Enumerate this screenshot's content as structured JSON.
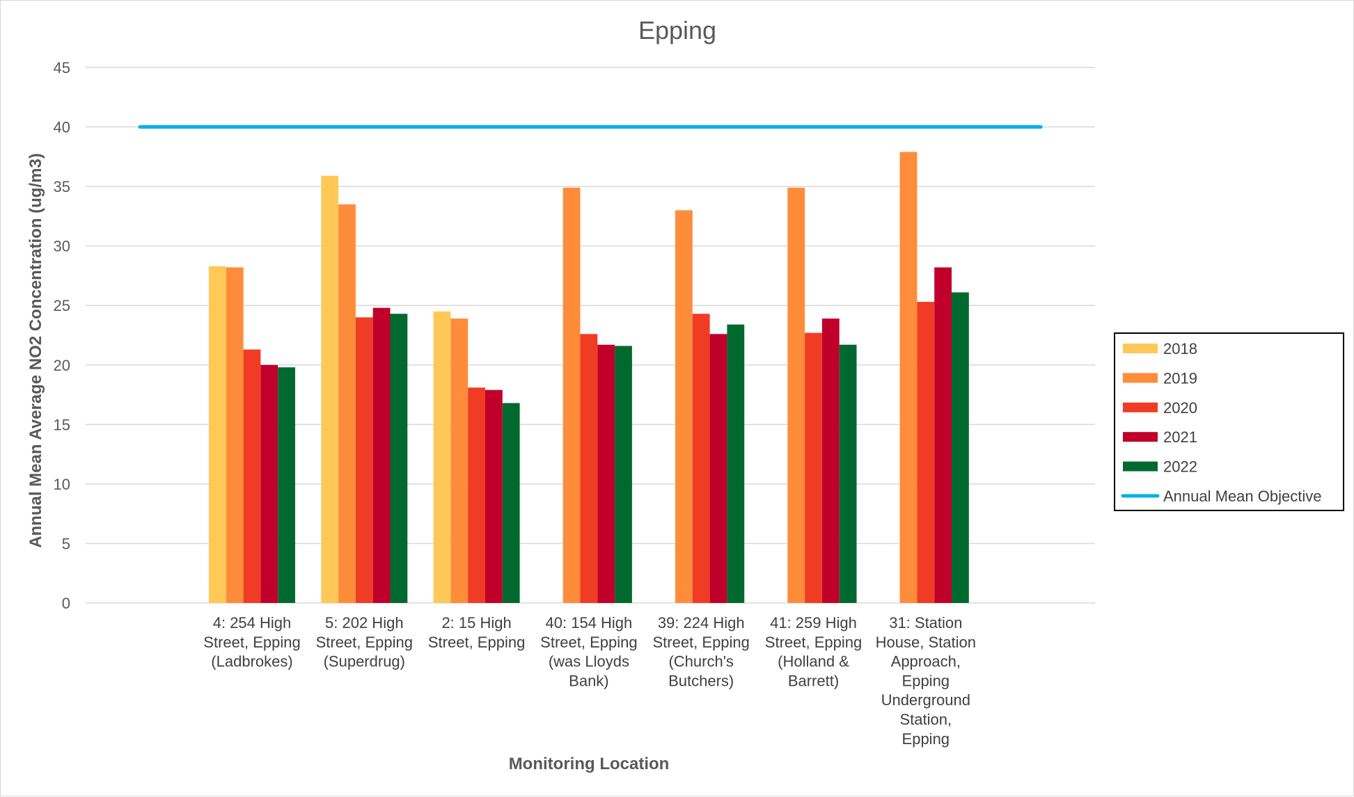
{
  "chart_data": {
    "type": "bar",
    "title": "Epping",
    "xlabel": "Monitoring Location",
    "ylabel": "Annual Mean Average NO2 Concentration (ug/m3)",
    "ylim": [
      0,
      45
    ],
    "yticks": [
      0,
      5,
      10,
      15,
      20,
      25,
      30,
      35,
      40,
      45
    ],
    "grid": "horizontal",
    "legend_position": "right",
    "categories": [
      [
        "4: 254 High",
        "Street, Epping",
        "(Ladbrokes)"
      ],
      [
        "5: 202 High",
        "Street, Epping",
        "(Superdrug)"
      ],
      [
        "2: 15 High",
        "Street, Epping"
      ],
      [
        "40: 154 High",
        "Street, Epping",
        "(was Lloyds",
        "Bank)"
      ],
      [
        "39: 224 High",
        "Street, Epping",
        "(Church's",
        "Butchers)"
      ],
      [
        "41: 259 High",
        "Street, Epping",
        "(Holland &",
        "Barrett)"
      ],
      [
        "31: Station",
        "House, Station",
        "Approach,",
        "Epping",
        "Underground",
        "Station,",
        "Epping"
      ]
    ],
    "series": [
      {
        "name": "2018",
        "color": "#FFC857",
        "values": [
          28.3,
          35.9,
          24.5,
          null,
          null,
          null,
          null
        ]
      },
      {
        "name": "2019",
        "color": "#FF8C3A",
        "values": [
          28.2,
          33.5,
          23.9,
          34.9,
          33.0,
          34.9,
          37.9
        ]
      },
      {
        "name": "2020",
        "color": "#F03C24",
        "values": [
          21.3,
          24.0,
          18.1,
          22.6,
          24.3,
          22.7,
          25.3
        ]
      },
      {
        "name": "2021",
        "color": "#C0002A",
        "values": [
          20.0,
          24.8,
          17.9,
          21.7,
          22.6,
          23.9,
          28.2
        ]
      },
      {
        "name": "2022",
        "color": "#006A2E",
        "values": [
          19.8,
          24.3,
          16.8,
          21.6,
          23.4,
          21.7,
          26.1
        ]
      }
    ],
    "reference_line": {
      "name": "Annual Mean Objective",
      "value": 40,
      "color": "#00B0F0"
    }
  }
}
